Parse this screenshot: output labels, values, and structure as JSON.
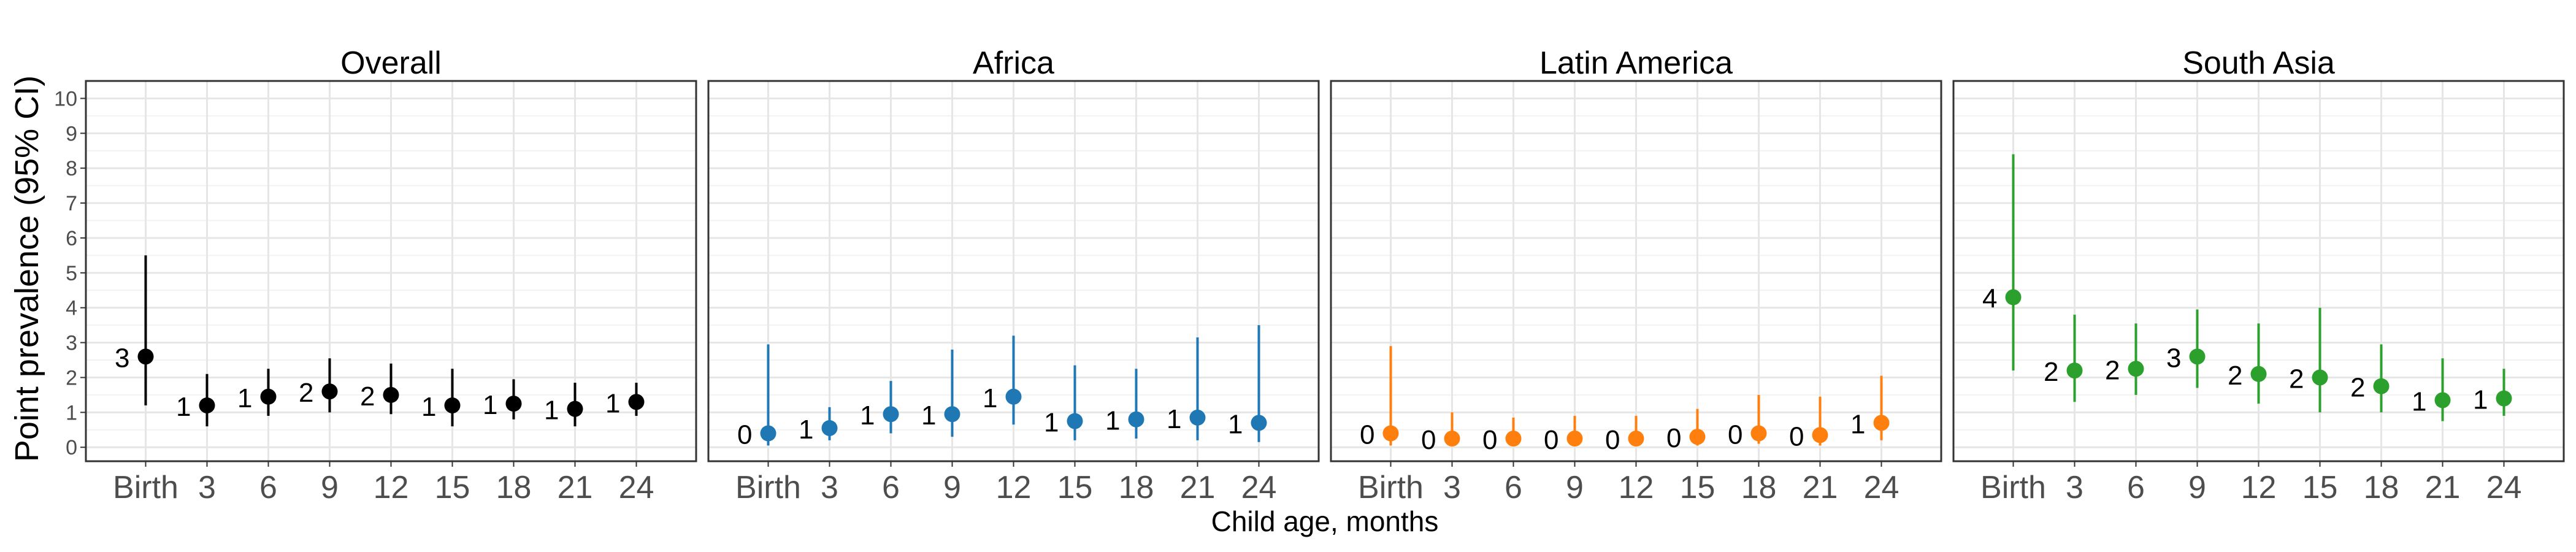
{
  "figure": {
    "ylabel": "Point prevalence (95% CI)",
    "xlabel": "Child age, months"
  },
  "chart_data": [
    {
      "type": "scatter",
      "title": "Overall",
      "color": "#000000",
      "categories": [
        "Birth",
        "3",
        "6",
        "9",
        "12",
        "15",
        "18",
        "21",
        "24"
      ],
      "values": [
        2.6,
        1.2,
        1.45,
        1.6,
        1.5,
        1.2,
        1.25,
        1.1,
        1.3
      ],
      "ci_low": [
        1.2,
        0.6,
        0.9,
        1.0,
        0.95,
        0.6,
        0.8,
        0.6,
        0.9
      ],
      "ci_high": [
        5.5,
        2.1,
        2.25,
        2.55,
        2.4,
        2.25,
        1.95,
        1.85,
        1.85
      ],
      "labels": [
        "3",
        "1",
        "1",
        "2",
        "2",
        "1",
        "1",
        "1",
        "1"
      ],
      "yticks": [
        "0",
        "1",
        "2",
        "3",
        "4",
        "5",
        "6",
        "7",
        "8",
        "9",
        "10"
      ],
      "ylim": [
        -0.4,
        10.5
      ]
    },
    {
      "type": "scatter",
      "title": "Africa",
      "color": "#1f78b4",
      "categories": [
        "Birth",
        "3",
        "6",
        "9",
        "12",
        "15",
        "18",
        "21",
        "24"
      ],
      "values": [
        0.4,
        0.55,
        0.95,
        0.95,
        1.45,
        0.75,
        0.8,
        0.85,
        0.7
      ],
      "ci_low": [
        0.05,
        0.2,
        0.4,
        0.3,
        0.65,
        0.2,
        0.25,
        0.2,
        0.15
      ],
      "ci_high": [
        2.95,
        1.15,
        1.9,
        2.8,
        3.2,
        2.35,
        2.25,
        3.15,
        3.5
      ],
      "labels": [
        "0",
        "1",
        "1",
        "1",
        "1",
        "1",
        "1",
        "1",
        "1"
      ],
      "yticks": [
        "0",
        "1",
        "2",
        "3",
        "4",
        "5",
        "6",
        "7",
        "8",
        "9",
        "10"
      ],
      "ylim": [
        -0.4,
        10.5
      ]
    },
    {
      "type": "scatter",
      "title": "Latin America",
      "color": "#ff7f0e",
      "categories": [
        "Birth",
        "3",
        "6",
        "9",
        "12",
        "15",
        "18",
        "21",
        "24"
      ],
      "values": [
        0.4,
        0.25,
        0.25,
        0.25,
        0.25,
        0.3,
        0.4,
        0.35,
        0.7
      ],
      "ci_low": [
        0.05,
        0.05,
        0.05,
        0.05,
        0.05,
        0.05,
        0.1,
        0.05,
        0.2
      ],
      "ci_high": [
        2.9,
        1.0,
        0.85,
        0.9,
        0.9,
        1.1,
        1.5,
        1.45,
        2.05
      ],
      "labels": [
        "0",
        "0",
        "0",
        "0",
        "0",
        "0",
        "0",
        "0",
        "1"
      ],
      "yticks": [
        "0",
        "1",
        "2",
        "3",
        "4",
        "5",
        "6",
        "7",
        "8",
        "9",
        "10"
      ],
      "ylim": [
        -0.4,
        10.5
      ]
    },
    {
      "type": "scatter",
      "title": "South Asia",
      "color": "#2ca02c",
      "categories": [
        "Birth",
        "3",
        "6",
        "9",
        "12",
        "15",
        "18",
        "21",
        "24"
      ],
      "values": [
        4.3,
        2.2,
        2.25,
        2.6,
        2.1,
        2.0,
        1.75,
        1.35,
        1.4
      ],
      "ci_low": [
        2.2,
        1.3,
        1.5,
        1.7,
        1.25,
        1.0,
        1.0,
        0.75,
        0.9
      ],
      "ci_high": [
        8.4,
        3.8,
        3.55,
        3.95,
        3.55,
        4.0,
        2.95,
        2.55,
        2.25
      ],
      "labels": [
        "4",
        "2",
        "2",
        "3",
        "2",
        "2",
        "2",
        "1",
        "1"
      ],
      "yticks": [
        "0",
        "1",
        "2",
        "3",
        "4",
        "5",
        "6",
        "7",
        "8",
        "9",
        "10"
      ],
      "ylim": [
        -0.4,
        10.5
      ]
    }
  ]
}
